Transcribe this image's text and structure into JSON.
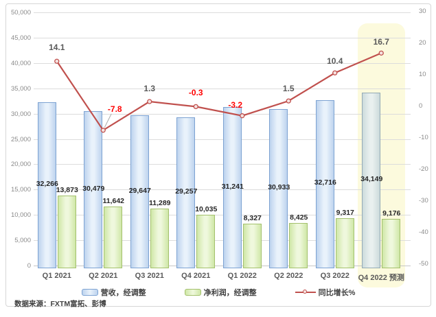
{
  "source_note": "数据来源：FXTM富拓、彭博",
  "chart_data": {
    "type": "combo",
    "title": "",
    "categories": [
      "Q1 2021",
      "Q2 2021",
      "Q3 2021",
      "Q4 2021",
      "Q1 2022",
      "Q2 2022",
      "Q3 2022",
      "Q4 2022 预测"
    ],
    "highlight_category_index": 7,
    "series": [
      {
        "name": "营收，经调整",
        "type": "bar",
        "axis": "left",
        "values": [
          32266,
          30479,
          29647,
          29257,
          31241,
          30933,
          32716,
          34149
        ],
        "labels": [
          "32,266",
          "30,479",
          "29,647",
          "29,257",
          "31,241",
          "30,933",
          "32,716",
          "34,149"
        ]
      },
      {
        "name": "净利润，经调整",
        "type": "bar",
        "axis": "left",
        "values": [
          13873,
          11642,
          11289,
          10035,
          8327,
          8425,
          9317,
          9176
        ],
        "labels": [
          "13,873",
          "11,642",
          "11,289",
          "10,035",
          "8,327",
          "8,425",
          "9,317",
          "9,176"
        ]
      },
      {
        "name": "同比增长%",
        "type": "line",
        "axis": "right",
        "values": [
          14.1,
          -7.8,
          1.3,
          -0.3,
          -3.2,
          1.5,
          10.4,
          16.7
        ],
        "labels": [
          "14.1",
          "-7.8",
          "1.3",
          "-0.3",
          "-3.2",
          "1.5",
          "10.4",
          "16.7"
        ]
      }
    ],
    "left_axis": {
      "min": 0,
      "max": 50000,
      "step": 5000,
      "tick_labels": [
        "0",
        "5,000",
        "10,000",
        "15,000",
        "20,000",
        "25,000",
        "30,000",
        "35,000",
        "40,000",
        "45,000",
        "50,000"
      ]
    },
    "right_axis": {
      "min": -50,
      "max": 30,
      "step": 10,
      "tick_labels": [
        "-50",
        "-40",
        "-30",
        "-20",
        "-10",
        "0",
        "10",
        "20",
        "30"
      ]
    },
    "grid": true,
    "legend_position": "bottom",
    "colors": {
      "revenue_bar_border": "#7ca2d2",
      "profit_bar_border": "#a3c06c",
      "forecast_bar_border": "#93aab4",
      "line": "#c0504d",
      "marker_fill": "#f5e2e0",
      "growth_label_positive": "#595959",
      "growth_label_negative": "#ff0000",
      "forecast_highlight": "#fcfadd",
      "gridline": "#dcdcdc"
    }
  }
}
